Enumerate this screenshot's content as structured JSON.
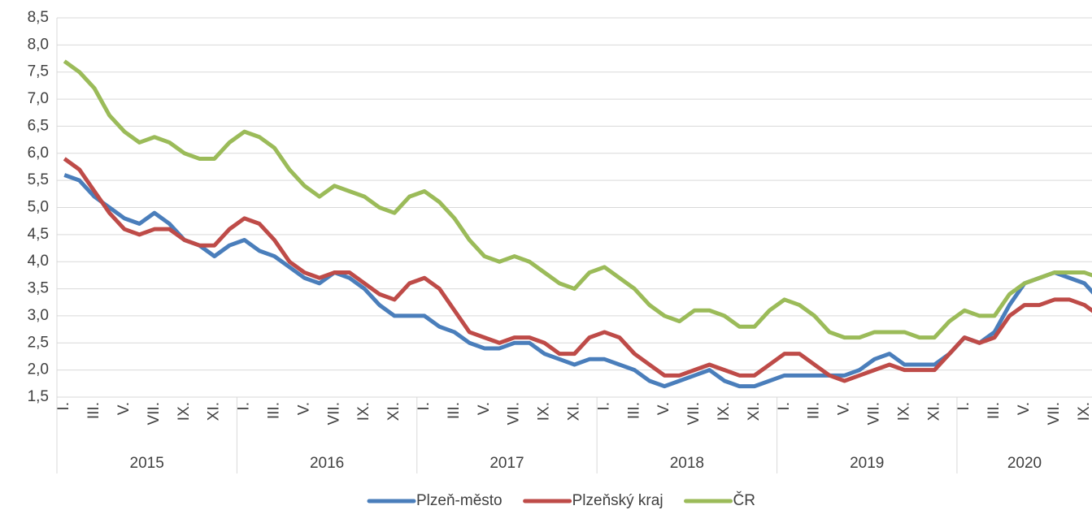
{
  "chart_data": {
    "type": "line",
    "categories": [
      "I.",
      null,
      "III.",
      null,
      "V.",
      null,
      "VII.",
      null,
      "IX.",
      null,
      "XI.",
      null,
      "I.",
      null,
      "III.",
      null,
      "V.",
      null,
      "VII.",
      null,
      "IX.",
      null,
      "XI.",
      null,
      "I.",
      null,
      "III.",
      null,
      "V.",
      null,
      "VII.",
      null,
      "IX.",
      null,
      "XI.",
      null,
      "I.",
      null,
      "III.",
      null,
      "V.",
      null,
      "VII.",
      null,
      "IX.",
      null,
      "XI.",
      null,
      "I.",
      null,
      "III.",
      null,
      "V.",
      null,
      "VII.",
      null,
      "IX.",
      null,
      "XI.",
      null,
      "I.",
      null,
      "III.",
      null,
      "V.",
      null,
      "VII.",
      null,
      "IX.",
      null
    ],
    "category_groups": [
      "2015",
      "2016",
      "2017",
      "2018",
      "2019",
      "2020"
    ],
    "series": [
      {
        "name": "Plzeň-město",
        "color": "#4a7ebb",
        "values": [
          5.6,
          5.5,
          5.2,
          5.0,
          4.8,
          4.7,
          4.9,
          4.7,
          4.4,
          4.3,
          4.1,
          4.3,
          4.4,
          4.2,
          4.1,
          3.9,
          3.7,
          3.6,
          3.8,
          3.7,
          3.5,
          3.2,
          3.0,
          3.0,
          3.0,
          2.8,
          2.7,
          2.5,
          2.4,
          2.4,
          2.5,
          2.5,
          2.3,
          2.2,
          2.1,
          2.2,
          2.2,
          2.1,
          2.0,
          1.8,
          1.7,
          1.8,
          1.9,
          2.0,
          1.8,
          1.7,
          1.7,
          1.8,
          1.9,
          1.9,
          1.9,
          1.9,
          1.9,
          2.0,
          2.2,
          2.3,
          2.1,
          2.1,
          2.1,
          2.3,
          2.6,
          2.5,
          2.7,
          3.2,
          3.6,
          3.7,
          3.8,
          3.7,
          3.6,
          3.3
        ]
      },
      {
        "name": "Plzeňský kraj",
        "color": "#be4b48",
        "values": [
          5.9,
          5.7,
          5.3,
          4.9,
          4.6,
          4.5,
          4.6,
          4.6,
          4.4,
          4.3,
          4.3,
          4.6,
          4.8,
          4.7,
          4.4,
          4.0,
          3.8,
          3.7,
          3.8,
          3.8,
          3.6,
          3.4,
          3.3,
          3.6,
          3.7,
          3.5,
          3.1,
          2.7,
          2.6,
          2.5,
          2.6,
          2.6,
          2.5,
          2.3,
          2.3,
          2.6,
          2.7,
          2.6,
          2.3,
          2.1,
          1.9,
          1.9,
          2.0,
          2.1,
          2.0,
          1.9,
          1.9,
          2.1,
          2.3,
          2.3,
          2.1,
          1.9,
          1.8,
          1.9,
          2.0,
          2.1,
          2.0,
          2.0,
          2.0,
          2.3,
          2.6,
          2.5,
          2.6,
          3.0,
          3.2,
          3.2,
          3.3,
          3.3,
          3.2,
          3.0
        ]
      },
      {
        "name": "ČR",
        "color": "#9bbb59",
        "values": [
          7.7,
          7.5,
          7.2,
          6.7,
          6.4,
          6.2,
          6.3,
          6.2,
          6.0,
          5.9,
          5.9,
          6.2,
          6.4,
          6.3,
          6.1,
          5.7,
          5.4,
          5.2,
          5.4,
          5.3,
          5.2,
          5.0,
          4.9,
          5.2,
          5.3,
          5.1,
          4.8,
          4.4,
          4.1,
          4.0,
          4.1,
          4.0,
          3.8,
          3.6,
          3.5,
          3.8,
          3.9,
          3.7,
          3.5,
          3.2,
          3.0,
          2.9,
          3.1,
          3.1,
          3.0,
          2.8,
          2.8,
          3.1,
          3.3,
          3.2,
          3.0,
          2.7,
          2.6,
          2.6,
          2.7,
          2.7,
          2.7,
          2.6,
          2.6,
          2.9,
          3.1,
          3.0,
          3.0,
          3.4,
          3.6,
          3.7,
          3.8,
          3.8,
          3.8,
          3.7
        ]
      }
    ],
    "ylim": [
      1.5,
      8.5
    ],
    "yticks": [
      {
        "value": 1.5,
        "label": "1,5"
      },
      {
        "value": 2.0,
        "label": "2,0"
      },
      {
        "value": 2.5,
        "label": "2,5"
      },
      {
        "value": 3.0,
        "label": "3,0"
      },
      {
        "value": 3.5,
        "label": "3,5"
      },
      {
        "value": 4.0,
        "label": "4,0"
      },
      {
        "value": 4.5,
        "label": "4,5"
      },
      {
        "value": 5.0,
        "label": "5,0"
      },
      {
        "value": 5.5,
        "label": "5,5"
      },
      {
        "value": 6.0,
        "label": "6,0"
      },
      {
        "value": 6.5,
        "label": "6,5"
      },
      {
        "value": 7.0,
        "label": "7,0"
      },
      {
        "value": 7.5,
        "label": "7,5"
      },
      {
        "value": 8.0,
        "label": "8,0"
      },
      {
        "value": 8.5,
        "label": "8,5"
      }
    ],
    "grid": true,
    "legend": "bottom"
  }
}
